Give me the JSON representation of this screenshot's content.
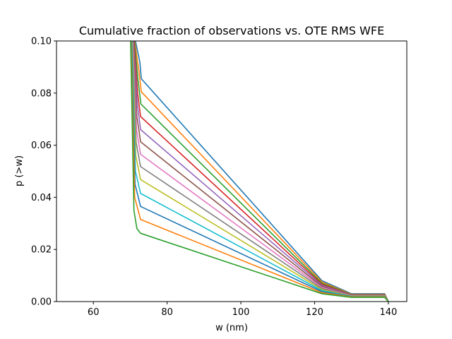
{
  "chart_data": {
    "type": "line",
    "title": "Cumulative fraction of observations vs. OTE RMS WFE",
    "xlabel": "w (nm)",
    "ylabel": "p (>w)",
    "xlim": [
      50,
      145
    ],
    "ylim": [
      0,
      0.1
    ],
    "xticks": [
      60,
      80,
      100,
      120,
      140
    ],
    "xtick_labels": [
      "60",
      "80",
      "100",
      "120",
      "140"
    ],
    "yticks": [
      0,
      0.02,
      0.04,
      0.06,
      0.08,
      0.1
    ],
    "ytick_labels": [
      "0.00",
      "0.02",
      "0.04",
      "0.06",
      "0.08",
      "0.10"
    ],
    "grid": false,
    "legend": false,
    "series": [
      {
        "color": "#1f77b4",
        "points": [
          [
            71.4,
            0.1
          ],
          [
            72.6,
            0.092
          ],
          [
            73,
            0.0855
          ],
          [
            122,
            0.008
          ],
          [
            130,
            0.003
          ],
          [
            139,
            0.003
          ],
          [
            140,
            0.0
          ]
        ]
      },
      {
        "color": "#ff7f0e",
        "points": [
          [
            71.2,
            0.1
          ],
          [
            72.3,
            0.089
          ],
          [
            73,
            0.0805
          ],
          [
            122,
            0.0075
          ],
          [
            130,
            0.0028
          ],
          [
            139,
            0.0028
          ],
          [
            140,
            0.0
          ]
        ]
      },
      {
        "color": "#2ca02c",
        "points": [
          [
            71.1,
            0.1
          ],
          [
            72.1,
            0.085
          ],
          [
            72.9,
            0.0758
          ],
          [
            122,
            0.007
          ],
          [
            130,
            0.0027
          ],
          [
            139,
            0.0027
          ],
          [
            140,
            0.0
          ]
        ]
      },
      {
        "color": "#d62728",
        "points": [
          [
            71.0,
            0.1
          ],
          [
            72.0,
            0.08
          ],
          [
            72.8,
            0.071
          ],
          [
            122,
            0.0066
          ],
          [
            130,
            0.0026
          ],
          [
            139,
            0.0026
          ],
          [
            140,
            0.0
          ]
        ]
      },
      {
        "color": "#9467bd",
        "points": [
          [
            70.9,
            0.1
          ],
          [
            71.9,
            0.076
          ],
          [
            72.8,
            0.066
          ],
          [
            122,
            0.0062
          ],
          [
            130,
            0.0025
          ],
          [
            139,
            0.0025
          ],
          [
            140,
            0.0
          ]
        ]
      },
      {
        "color": "#8c564b",
        "points": [
          [
            70.8,
            0.1
          ],
          [
            71.8,
            0.071
          ],
          [
            72.8,
            0.0613
          ],
          [
            122,
            0.0058
          ],
          [
            130,
            0.0024
          ],
          [
            139,
            0.0024
          ],
          [
            140,
            0.0
          ]
        ]
      },
      {
        "color": "#e377c2",
        "points": [
          [
            70.7,
            0.1
          ],
          [
            71.7,
            0.066
          ],
          [
            72.8,
            0.0565
          ],
          [
            122,
            0.0054
          ],
          [
            130,
            0.0023
          ],
          [
            139,
            0.0023
          ],
          [
            140,
            0.0
          ]
        ]
      },
      {
        "color": "#7f7f7f",
        "points": [
          [
            70.6,
            0.1
          ],
          [
            71.6,
            0.061
          ],
          [
            72.8,
            0.0518
          ],
          [
            122,
            0.005
          ],
          [
            130,
            0.0022
          ],
          [
            139,
            0.0022
          ],
          [
            140,
            0.0
          ]
        ]
      },
      {
        "color": "#bcbd22",
        "points": [
          [
            70.5,
            0.1
          ],
          [
            71.5,
            0.056
          ],
          [
            72.8,
            0.0468
          ],
          [
            122,
            0.0046
          ],
          [
            130,
            0.0021
          ],
          [
            139,
            0.0021
          ],
          [
            140,
            0.0
          ]
        ]
      },
      {
        "color": "#17becf",
        "points": [
          [
            70.4,
            0.1
          ],
          [
            71.4,
            0.05
          ],
          [
            72.8,
            0.0415
          ],
          [
            122,
            0.0042
          ],
          [
            130,
            0.002
          ],
          [
            139,
            0.002
          ],
          [
            140,
            0.0
          ]
        ]
      },
      {
        "color": "#1f77b4",
        "points": [
          [
            70.3,
            0.1
          ],
          [
            71.3,
            0.045
          ],
          [
            72.8,
            0.0365
          ],
          [
            122,
            0.0038
          ],
          [
            130,
            0.0019
          ],
          [
            139,
            0.0019
          ],
          [
            140,
            0.0
          ]
        ]
      },
      {
        "color": "#ff7f0e",
        "points": [
          [
            70.2,
            0.1
          ],
          [
            71.2,
            0.04
          ],
          [
            72.8,
            0.0315
          ],
          [
            122,
            0.0034
          ],
          [
            130,
            0.0018
          ],
          [
            139,
            0.0018
          ],
          [
            140,
            0.0
          ]
        ]
      },
      {
        "color": "#2ca02c",
        "points": [
          [
            70.1,
            0.1
          ],
          [
            71.0,
            0.035
          ],
          [
            71.8,
            0.028
          ],
          [
            72.8,
            0.0262
          ],
          [
            122,
            0.003
          ],
          [
            130,
            0.0016
          ],
          [
            139,
            0.0016
          ],
          [
            140,
            0.0
          ]
        ]
      }
    ]
  }
}
